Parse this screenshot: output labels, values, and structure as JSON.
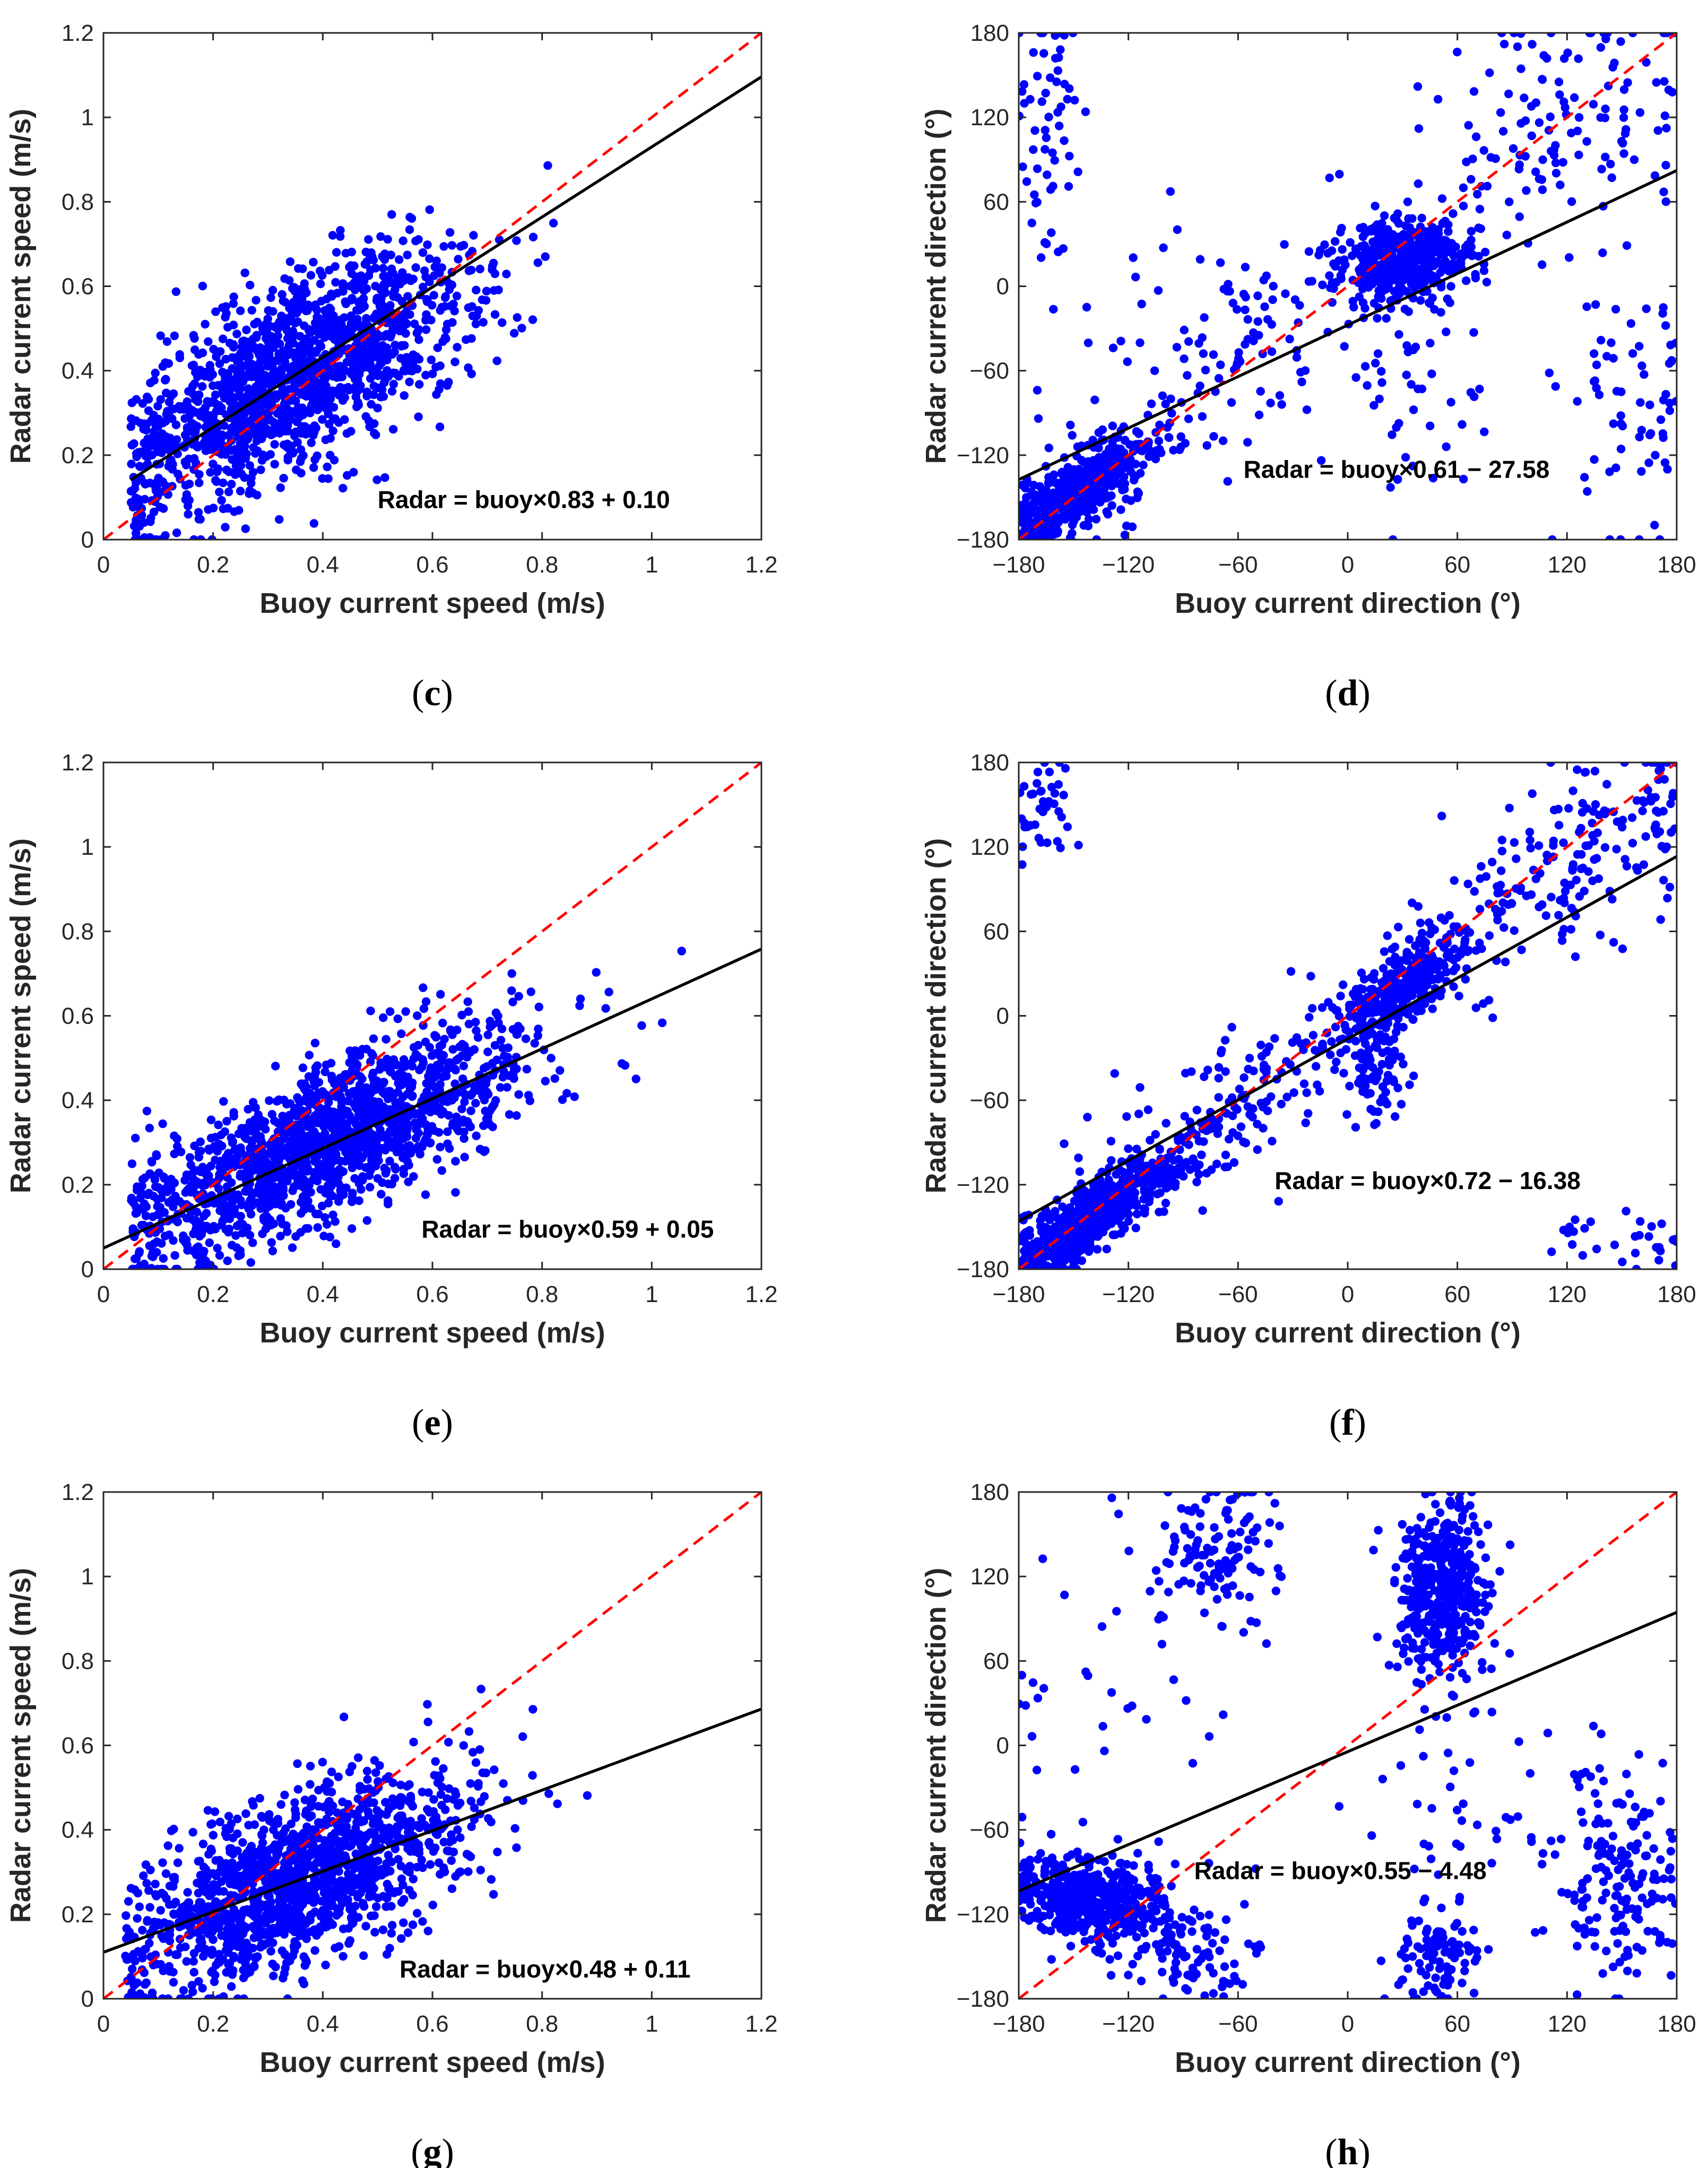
{
  "chart_data": [
    {
      "type": "scatter",
      "panel": "c",
      "caption": {
        "open": "(",
        "letter": "c",
        "close": ")"
      },
      "xlabel": "Buoy current speed (m/s)",
      "ylabel": "Radar current speed (m/s)",
      "xlim": [
        0,
        1.2
      ],
      "ylim": [
        0,
        1.2
      ],
      "xticks": [
        0,
        0.2,
        0.4,
        0.6,
        0.8,
        1,
        1.2
      ],
      "xticklabels": [
        "0",
        "0.2",
        "0.4",
        "0.6",
        "0.8",
        "1",
        "1.2"
      ],
      "yticks": [
        0,
        0.2,
        0.4,
        0.6,
        0.8,
        1,
        1.2
      ],
      "yticklabels": [
        "0",
        "0.2",
        "0.4",
        "0.6",
        "0.8",
        "1",
        "1.2"
      ],
      "regression": {
        "slope": 0.83,
        "intercept": 0.1,
        "x_range": [
          0.05,
          1.2
        ]
      },
      "identity_line": true,
      "equation": "Radar = buoy×0.83 + 0.10",
      "equation_anchor": [
        0.5,
        0.075
      ],
      "clusters": [
        {
          "cx": 0.35,
          "cy": 0.39,
          "sx": 0.17,
          "sy": 0.16,
          "rho": 0.72,
          "n": 1500,
          "xmin": 0.05,
          "xmax": 1.1
        }
      ],
      "point_color": "#0000ff",
      "regression_color": "#000000",
      "identity_color": "#ff0000"
    },
    {
      "type": "scatter",
      "panel": "d",
      "caption": {
        "open": "(",
        "letter": "d",
        "close": ")"
      },
      "xlabel": "Buoy current direction (°)",
      "ylabel": "Radar current direction (°)",
      "xlim": [
        -180,
        180
      ],
      "ylim": [
        -180,
        180
      ],
      "xticks": [
        -180,
        -120,
        -60,
        0,
        60,
        120,
        180
      ],
      "xticklabels": [
        "−180",
        "−120",
        "−60",
        "0",
        "60",
        "120",
        "180"
      ],
      "yticks": [
        -180,
        -120,
        -60,
        0,
        60,
        120,
        180
      ],
      "yticklabels": [
        "−180",
        "−120",
        "−60",
        "0",
        "60",
        "120",
        "180"
      ],
      "regression": {
        "slope": 0.61,
        "intercept": -27.58,
        "x_range": [
          -180,
          180
        ]
      },
      "identity_line": true,
      "equation": "Radar = buoy×0.61 − 27.58",
      "equation_anchor": [
        -57,
        -136
      ],
      "clusters": [
        {
          "cx": -150,
          "cy": -148,
          "sx": 22,
          "sy": 22,
          "rho": 0.8,
          "n": 550
        },
        {
          "cx": 30,
          "cy": 18,
          "sx": 18,
          "sy": 14,
          "rho": 0.2,
          "n": 450
        },
        {
          "cx": -60,
          "cy": -50,
          "sx": 55,
          "sy": 55,
          "rho": 0.6,
          "n": 160
        },
        {
          "cx": 120,
          "cy": 110,
          "sx": 40,
          "sy": 50,
          "rho": 0.3,
          "n": 130
        },
        {
          "cx": 150,
          "cy": -80,
          "sx": 25,
          "sy": 60,
          "rho": 0.0,
          "n": 70
        },
        {
          "cx": -165,
          "cy": 110,
          "sx": 10,
          "sy": 55,
          "rho": 0.0,
          "n": 60
        },
        {
          "cx": 40,
          "cy": -80,
          "sx": 20,
          "sy": 50,
          "rho": 0.0,
          "n": 40
        }
      ],
      "point_color": "#0000ff",
      "regression_color": "#000000",
      "identity_color": "#ff0000"
    },
    {
      "type": "scatter",
      "panel": "e",
      "caption": {
        "open": "(",
        "letter": "e",
        "close": ")"
      },
      "xlabel": "Buoy current speed (m/s)",
      "ylabel": "Radar current speed (m/s)",
      "xlim": [
        0,
        1.2
      ],
      "ylim": [
        0,
        1.2
      ],
      "xticks": [
        0,
        0.2,
        0.4,
        0.6,
        0.8,
        1,
        1.2
      ],
      "xticklabels": [
        "0",
        "0.2",
        "0.4",
        "0.6",
        "0.8",
        "1",
        "1.2"
      ],
      "yticks": [
        0,
        0.2,
        0.4,
        0.6,
        0.8,
        1,
        1.2
      ],
      "yticklabels": [
        "0",
        "0.2",
        "0.4",
        "0.6",
        "0.8",
        "1",
        "1.2"
      ],
      "regression": {
        "slope": 0.59,
        "intercept": 0.05,
        "x_range": [
          0,
          1.2
        ]
      },
      "identity_line": true,
      "equation": "Radar = buoy×0.59 + 0.05",
      "equation_anchor": [
        0.58,
        0.075
      ],
      "clusters": [
        {
          "cx": 0.4,
          "cy": 0.29,
          "sx": 0.19,
          "sy": 0.14,
          "rho": 0.75,
          "n": 1600,
          "xmin": 0.05,
          "xmax": 1.07
        }
      ],
      "point_color": "#0000ff",
      "regression_color": "#000000",
      "identity_color": "#ff0000"
    },
    {
      "type": "scatter",
      "panel": "f",
      "caption": {
        "open": "(",
        "letter": "f",
        "close": ")"
      },
      "xlabel": "Buoy current direction (°)",
      "ylabel": "Radar current direction (°)",
      "xlim": [
        -180,
        180
      ],
      "ylim": [
        -180,
        180
      ],
      "xticks": [
        -180,
        -120,
        -60,
        0,
        60,
        120,
        180
      ],
      "xticklabels": [
        "−180",
        "−120",
        "−60",
        "0",
        "60",
        "120",
        "180"
      ],
      "yticks": [
        -180,
        -120,
        -60,
        0,
        60,
        120,
        180
      ],
      "yticklabels": [
        "−180",
        "−120",
        "−60",
        "0",
        "60",
        "120",
        "180"
      ],
      "regression": {
        "slope": 0.72,
        "intercept": -16.38,
        "x_range": [
          -180,
          180
        ]
      },
      "identity_line": true,
      "equation": "Radar = buoy×0.72 − 16.38",
      "equation_anchor": [
        -40,
        -123
      ],
      "clusters": [
        {
          "cx": -140,
          "cy": -142,
          "sx": 28,
          "sy": 28,
          "rho": 0.9,
          "n": 700
        },
        {
          "cx": 30,
          "cy": 20,
          "sx": 18,
          "sy": 20,
          "rho": 0.7,
          "n": 350
        },
        {
          "cx": 120,
          "cy": 110,
          "sx": 45,
          "sy": 45,
          "rho": 0.7,
          "n": 200
        },
        {
          "cx": -60,
          "cy": -60,
          "sx": 45,
          "sy": 45,
          "rho": 0.7,
          "n": 150
        },
        {
          "cx": 15,
          "cy": -40,
          "sx": 8,
          "sy": 25,
          "rho": 0.0,
          "n": 80
        },
        {
          "cx": -165,
          "cy": 150,
          "sx": 10,
          "sy": 20,
          "rho": 0.0,
          "n": 40
        },
        {
          "cx": 150,
          "cy": -160,
          "sx": 30,
          "sy": 12,
          "rho": 0.0,
          "n": 30
        }
      ],
      "point_color": "#0000ff",
      "regression_color": "#000000",
      "identity_color": "#ff0000"
    },
    {
      "type": "scatter",
      "panel": "g",
      "caption": {
        "open": "(",
        "letter": "g",
        "close": ")"
      },
      "xlabel": "Buoy current speed (m/s)",
      "ylabel": "Radar current speed (m/s)",
      "xlim": [
        0,
        1.2
      ],
      "ylim": [
        0,
        1.2
      ],
      "xticks": [
        0,
        0.2,
        0.4,
        0.6,
        0.8,
        1,
        1.2
      ],
      "xticklabels": [
        "0",
        "0.2",
        "0.4",
        "0.6",
        "0.8",
        "1",
        "1.2"
      ],
      "yticks": [
        0,
        0.2,
        0.4,
        0.6,
        0.8,
        1,
        1.2
      ],
      "yticklabels": [
        "0",
        "0.2",
        "0.4",
        "0.6",
        "0.8",
        "1",
        "1.2"
      ],
      "regression": {
        "slope": 0.48,
        "intercept": 0.11,
        "x_range": [
          0,
          1.2
        ]
      },
      "identity_line": true,
      "equation": "Radar = buoy×0.48 + 0.11",
      "equation_anchor": [
        0.54,
        0.05
      ],
      "clusters": [
        {
          "cx": 0.36,
          "cy": 0.28,
          "sx": 0.16,
          "sy": 0.13,
          "rho": 0.6,
          "n": 1400,
          "xmin": 0.04,
          "xmax": 0.92
        }
      ],
      "point_color": "#0000ff",
      "regression_color": "#000000",
      "identity_color": "#ff0000"
    },
    {
      "type": "scatter",
      "panel": "h",
      "caption": {
        "open": "(",
        "letter": "h",
        "close": ")"
      },
      "xlabel": "Buoy current direction (°)",
      "ylabel": "Radar current direction (°)",
      "xlim": [
        -180,
        180
      ],
      "ylim": [
        -180,
        180
      ],
      "xticks": [
        -180,
        -120,
        -60,
        0,
        60,
        120,
        180
      ],
      "xticklabels": [
        "−180",
        "−120",
        "−60",
        "0",
        "60",
        "120",
        "180"
      ],
      "yticks": [
        -180,
        -120,
        -60,
        0,
        60,
        120,
        180
      ],
      "yticklabels": [
        "−180",
        "−120",
        "−60",
        "0",
        "60",
        "120",
        "180"
      ],
      "regression": {
        "slope": 0.55,
        "intercept": -4.48,
        "x_range": [
          -180,
          180
        ]
      },
      "identity_line": true,
      "equation": "Radar = buoy×0.55 − 4.48",
      "equation_anchor": [
        -84,
        -95
      ],
      "clusters": [
        {
          "cx": -140,
          "cy": -110,
          "sx": 22,
          "sy": 14,
          "rho": -0.2,
          "n": 500
        },
        {
          "cx": 52,
          "cy": 110,
          "sx": 12,
          "sy": 30,
          "rho": 0.0,
          "n": 450
        },
        {
          "cx": -70,
          "cy": 135,
          "sx": 18,
          "sy": 28,
          "rho": 0.0,
          "n": 120
        },
        {
          "cx": 150,
          "cy": -100,
          "sx": 18,
          "sy": 35,
          "rho": 0.0,
          "n": 150
        },
        {
          "cx": -90,
          "cy": -150,
          "sx": 25,
          "sy": 18,
          "rho": 0.0,
          "n": 100
        },
        {
          "cx": 50,
          "cy": -150,
          "sx": 12,
          "sy": 18,
          "rho": 0.0,
          "n": 100
        },
        {
          "cx": 100,
          "cy": -40,
          "sx": 40,
          "sy": 50,
          "rho": 0.0,
          "n": 60
        },
        {
          "cx": -120,
          "cy": 40,
          "sx": 40,
          "sy": 60,
          "rho": 0.0,
          "n": 40
        }
      ],
      "point_color": "#0000ff",
      "regression_color": "#000000",
      "identity_color": "#ff0000"
    }
  ]
}
